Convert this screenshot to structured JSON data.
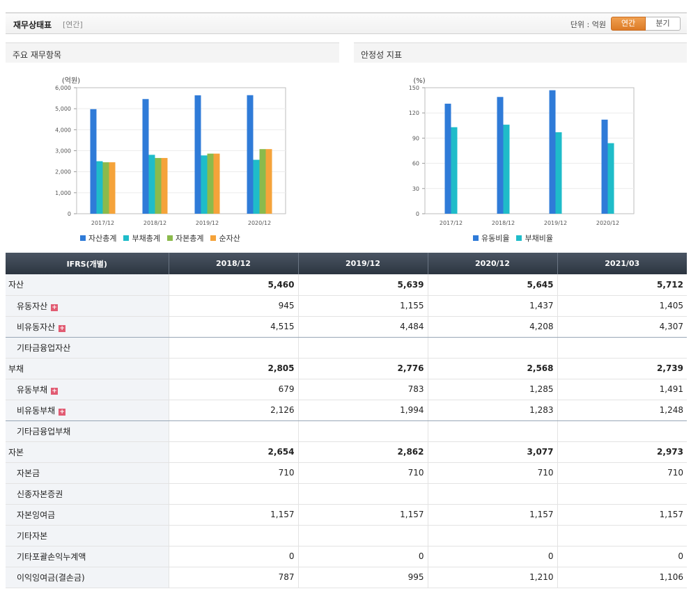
{
  "header": {
    "title": "재무상태표",
    "subtitle": "[연간]",
    "unit_label": "단위 : 억원",
    "toggle": [
      "연간",
      "분기"
    ]
  },
  "panels": {
    "left_title": "주요 재무항목",
    "right_title": "안정성 지표"
  },
  "colors": {
    "blue": "#2f7bd8",
    "teal": "#1fbcc9",
    "green": "#8bba4c",
    "orange": "#f5a33a"
  },
  "chart_data": [
    {
      "type": "bar",
      "unit_label": "(억원)",
      "categories": [
        "2017/12",
        "2018/12",
        "2019/12",
        "2020/12"
      ],
      "ylim": [
        0,
        6000
      ],
      "yticks": [
        "0",
        "1,000",
        "2,000",
        "3,000",
        "4,000",
        "5,000",
        "6,000"
      ],
      "grid": true,
      "legend": "bottom",
      "series": [
        {
          "name": "자산총계",
          "color": "#2f7bd8",
          "values": [
            4980,
            5460,
            5639,
            5645
          ]
        },
        {
          "name": "부채총계",
          "color": "#1fbcc9",
          "values": [
            2500,
            2805,
            2776,
            2568
          ]
        },
        {
          "name": "자본총계",
          "color": "#8bba4c",
          "values": [
            2450,
            2654,
            2862,
            3077
          ]
        },
        {
          "name": "순자산",
          "color": "#f5a33a",
          "values": [
            2450,
            2654,
            2862,
            3077
          ]
        }
      ]
    },
    {
      "type": "bar",
      "unit_label": "(%)",
      "categories": [
        "2017/12",
        "2018/12",
        "2019/12",
        "2020/12"
      ],
      "ylim": [
        0,
        150
      ],
      "yticks": [
        "0",
        "30",
        "60",
        "90",
        "120",
        "150"
      ],
      "grid": true,
      "legend": "bottom",
      "series": [
        {
          "name": "유동비율",
          "color": "#2f7bd8",
          "values": [
            131,
            139,
            147,
            112
          ]
        },
        {
          "name": "부채비율",
          "color": "#1fbcc9",
          "values": [
            103,
            106,
            97,
            84
          ]
        }
      ]
    }
  ],
  "table": {
    "header": [
      "IFRS(개별)",
      "2018/12",
      "2019/12",
      "2020/12",
      "2021/03"
    ],
    "rows": [
      {
        "label": "자산",
        "values": [
          "5,460",
          "5,639",
          "5,645",
          "5,712"
        ],
        "level": "major"
      },
      {
        "label": "유동자산",
        "values": [
          "945",
          "1,155",
          "1,437",
          "1,405"
        ],
        "level": "minor",
        "plus": true
      },
      {
        "label": "비유동자산",
        "values": [
          "4,515",
          "4,484",
          "4,208",
          "4,307"
        ],
        "level": "minor",
        "plus": true
      },
      {
        "label": "기타금융업자산",
        "values": [
          "",
          "",
          "",
          ""
        ],
        "level": "minor"
      },
      {
        "label": "부채",
        "values": [
          "2,805",
          "2,776",
          "2,568",
          "2,739"
        ],
        "level": "major"
      },
      {
        "label": "유동부채",
        "values": [
          "679",
          "783",
          "1,285",
          "1,491"
        ],
        "level": "minor",
        "plus": true
      },
      {
        "label": "비유동부채",
        "values": [
          "2,126",
          "1,994",
          "1,283",
          "1,248"
        ],
        "level": "minor",
        "plus": true
      },
      {
        "label": "기타금융업부채",
        "values": [
          "",
          "",
          "",
          ""
        ],
        "level": "minor"
      },
      {
        "label": "자본",
        "values": [
          "2,654",
          "2,862",
          "3,077",
          "2,973"
        ],
        "level": "major"
      },
      {
        "label": "자본금",
        "values": [
          "710",
          "710",
          "710",
          "710"
        ],
        "level": "minor"
      },
      {
        "label": "신종자본증권",
        "values": [
          "",
          "",
          "",
          ""
        ],
        "level": "minor"
      },
      {
        "label": "자본잉여금",
        "values": [
          "1,157",
          "1,157",
          "1,157",
          "1,157"
        ],
        "level": "minor"
      },
      {
        "label": "기타자본",
        "values": [
          "",
          "",
          "",
          ""
        ],
        "level": "minor"
      },
      {
        "label": "기타포괄손익누계액",
        "values": [
          "0",
          "0",
          "0",
          "0"
        ],
        "level": "minor"
      },
      {
        "label": "이익잉여금(결손금)",
        "values": [
          "787",
          "995",
          "1,210",
          "1,106"
        ],
        "level": "minor"
      }
    ]
  }
}
